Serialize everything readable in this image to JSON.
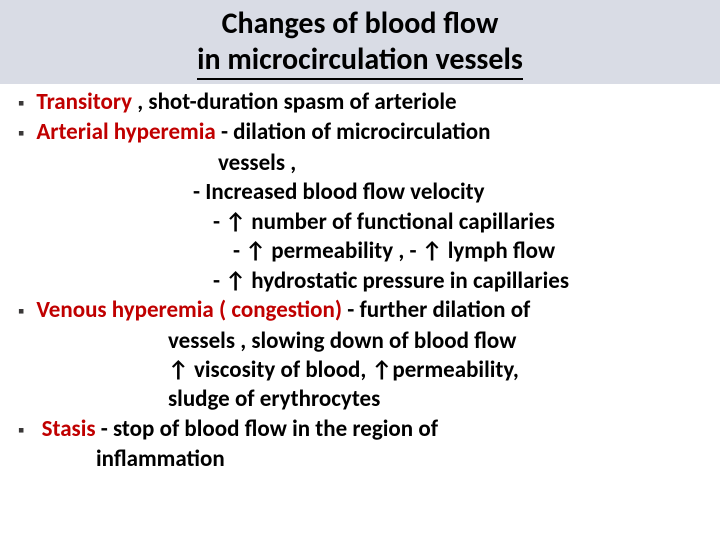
{
  "title_line1": "Changes  of  blood  flow",
  "title_line2": "in  microcirculation  vessels",
  "bullet_char": "▪",
  "items": {
    "b1_red": "Transitory",
    "b1_rest": " ,  shot-duration  spasm  of   arteriole",
    "b2_red": "Arterial  hyperemia ",
    "b2_rest": " - dilation  of microcirculation",
    "b2_c1": "vessels ,",
    "b2_c2": "- Increased  blood   flow  velocity",
    "b2_c3": "-   ↑ number of  functional  capillaries",
    "b2_c4": "-  ↑ permeability , -  ↑ lymph  flow",
    "b2_c5": "- ↑ hydrostatic  pressure  in capillaries",
    "b3_red": "Venous  hyperemia  ( congestion) ",
    "b3_rest": " - further dilation  of",
    "b3_c1": "vessels ,  slowing  down  of blood flow",
    "b3_c2": "↑ viscosity  of blood, ↑permeability,",
    "b3_c3": "sludge  of erythrocytes",
    "b4_red": "Stasis ",
    "b4_rest": " -  stop  of  blood  flow  in the  region  of",
    "b4_c1": "inflammation"
  },
  "colors": {
    "title_bg": "#d9dce5",
    "red_text": "#c00000",
    "body_text": "#000000"
  },
  "fonts": {
    "title_size": 30,
    "body_size": 23,
    "weight": "bold"
  }
}
